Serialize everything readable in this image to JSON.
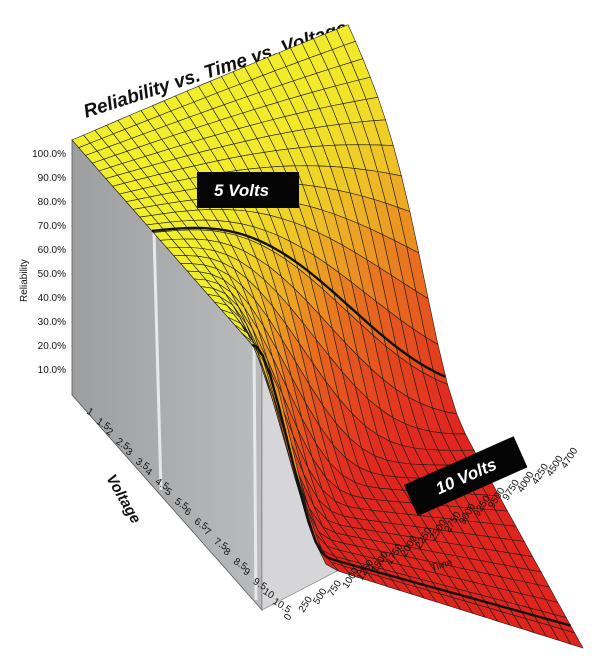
{
  "chart_data": {
    "type": "surface",
    "title": "Reliability vs. Time vs. Voltage",
    "zlabel": "Reliability",
    "xlabel": "Time",
    "ylabel": "Voltage",
    "z_ticks": [
      "10.0%",
      "20.0%",
      "30.0%",
      "40.0%",
      "50.0%",
      "60.0%",
      "70.0%",
      "80.0%",
      "90.0%",
      "100.0%"
    ],
    "time_ticks": [
      "0",
      "250",
      "500",
      "750",
      "1000",
      "1250",
      "1500",
      "1750",
      "2000",
      "2250",
      "2500",
      "2750",
      "9000",
      "9250",
      "9500",
      "9750",
      "4000",
      "4250",
      "4500",
      "4700"
    ],
    "voltage_ticks": [
      "1",
      "1.5",
      "2",
      "2.5",
      "3",
      "3.5",
      "4",
      "4.5",
      "5",
      "5.5",
      "6",
      "6.5",
      "7",
      "7.5",
      "8",
      "8.5",
      "9",
      "9.5",
      "10",
      "10.5"
    ],
    "annotations": [
      {
        "label": "5 Volts",
        "voltage": 5
      },
      {
        "label": "10 Volts",
        "voltage": 10
      }
    ],
    "colors": {
      "high": "#f2ee2a",
      "mid": "#e8701f",
      "low": "#e0251f",
      "side_wall": "#a9abad",
      "gridline": "#1a1a1a"
    }
  }
}
